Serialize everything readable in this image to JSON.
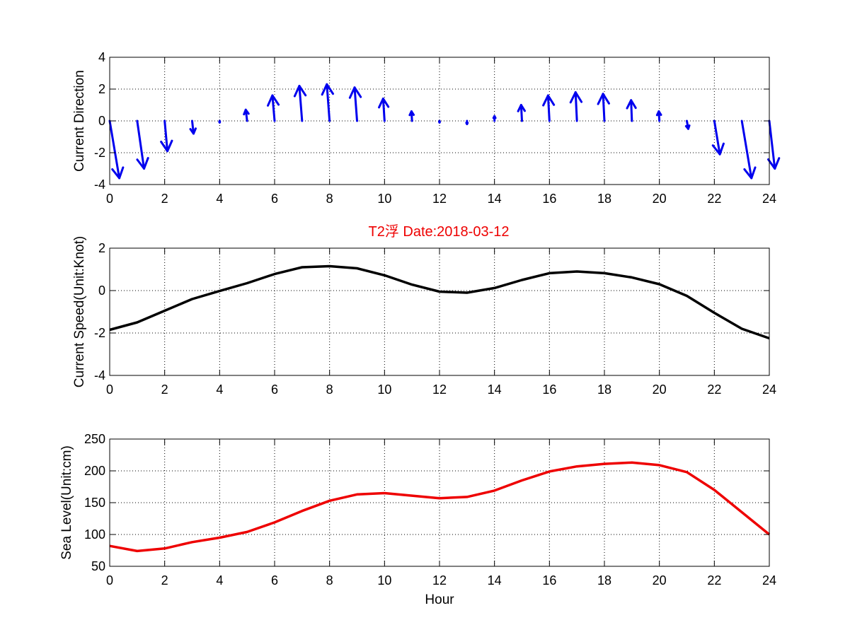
{
  "chart_data": [
    {
      "type": "quiver",
      "ylabel": "Current Direction",
      "xlim": [
        0,
        24
      ],
      "ylim": [
        -4,
        4
      ],
      "xticks": [
        0,
        2,
        4,
        6,
        8,
        10,
        12,
        14,
        16,
        18,
        20,
        22,
        24
      ],
      "yticks": [
        -4,
        -2,
        0,
        2,
        4
      ],
      "grid": true,
      "color": "#0000ee",
      "arrows": [
        {
          "x": 0,
          "u": 0.35,
          "v": -3.6
        },
        {
          "x": 1,
          "u": 0.25,
          "v": -3.0
        },
        {
          "x": 2,
          "u": 0.1,
          "v": -1.9
        },
        {
          "x": 3,
          "u": 0.05,
          "v": -0.8
        },
        {
          "x": 4,
          "u": 0.0,
          "v": -0.1
        },
        {
          "x": 5,
          "u": -0.05,
          "v": 0.7
        },
        {
          "x": 6,
          "u": -0.08,
          "v": 1.6
        },
        {
          "x": 7,
          "u": -0.1,
          "v": 2.2
        },
        {
          "x": 8,
          "u": -0.1,
          "v": 2.3
        },
        {
          "x": 9,
          "u": -0.09,
          "v": 2.1
        },
        {
          "x": 10,
          "u": -0.05,
          "v": 1.4
        },
        {
          "x": 11,
          "u": -0.02,
          "v": 0.6
        },
        {
          "x": 12,
          "u": 0.0,
          "v": -0.1
        },
        {
          "x": 13,
          "u": 0.0,
          "v": -0.2
        },
        {
          "x": 14,
          "u": 0.0,
          "v": 0.3
        },
        {
          "x": 15,
          "u": -0.03,
          "v": 1.0
        },
        {
          "x": 16,
          "u": -0.05,
          "v": 1.6
        },
        {
          "x": 17,
          "u": -0.05,
          "v": 1.8
        },
        {
          "x": 18,
          "u": -0.05,
          "v": 1.7
        },
        {
          "x": 19,
          "u": -0.03,
          "v": 1.3
        },
        {
          "x": 20,
          "u": -0.02,
          "v": 0.6
        },
        {
          "x": 21,
          "u": 0.05,
          "v": -0.5
        },
        {
          "x": 22,
          "u": 0.2,
          "v": -2.1
        },
        {
          "x": 23,
          "u": 0.35,
          "v": -3.6
        },
        {
          "x": 24,
          "u": 0.2,
          "v": -3.0
        }
      ]
    },
    {
      "type": "line",
      "title": "T2浮    Date:2018-03-12",
      "ylabel": "Current Speed(Unit:Knot)",
      "xlim": [
        0,
        24
      ],
      "ylim": [
        -4,
        2
      ],
      "xticks": [
        0,
        2,
        4,
        6,
        8,
        10,
        12,
        14,
        16,
        18,
        20,
        22,
        24
      ],
      "yticks": [
        -4,
        -2,
        0,
        2
      ],
      "grid": true,
      "color": "#000000",
      "x": [
        0,
        1,
        2,
        3,
        4,
        5,
        6,
        7,
        8,
        9,
        10,
        11,
        12,
        13,
        14,
        15,
        16,
        17,
        18,
        19,
        20,
        21,
        22,
        23,
        24
      ],
      "y": [
        -1.85,
        -1.5,
        -0.95,
        -0.4,
        -0.02,
        0.35,
        0.78,
        1.1,
        1.15,
        1.05,
        0.72,
        0.28,
        -0.05,
        -0.1,
        0.12,
        0.5,
        0.82,
        0.9,
        0.82,
        0.62,
        0.3,
        -0.25,
        -1.05,
        -1.8,
        -2.25
      ]
    },
    {
      "type": "line",
      "xlabel": "Hour",
      "ylabel": "Sea Level(Unit:cm)",
      "xlim": [
        0,
        24
      ],
      "ylim": [
        50,
        250
      ],
      "xticks": [
        0,
        2,
        4,
        6,
        8,
        10,
        12,
        14,
        16,
        18,
        20,
        22,
        24
      ],
      "yticks": [
        50,
        100,
        150,
        200,
        250
      ],
      "grid": true,
      "color": "#ee0000",
      "x": [
        0,
        1,
        2,
        3,
        4,
        5,
        6,
        7,
        8,
        9,
        10,
        11,
        12,
        13,
        14,
        15,
        16,
        17,
        18,
        19,
        20,
        21,
        22,
        23,
        24
      ],
      "y": [
        82,
        74,
        78,
        88,
        95,
        104,
        119,
        137,
        153,
        163,
        165,
        161,
        157,
        159,
        169,
        185,
        199,
        207,
        211,
        213,
        209,
        198,
        170,
        135,
        100
      ]
    }
  ]
}
